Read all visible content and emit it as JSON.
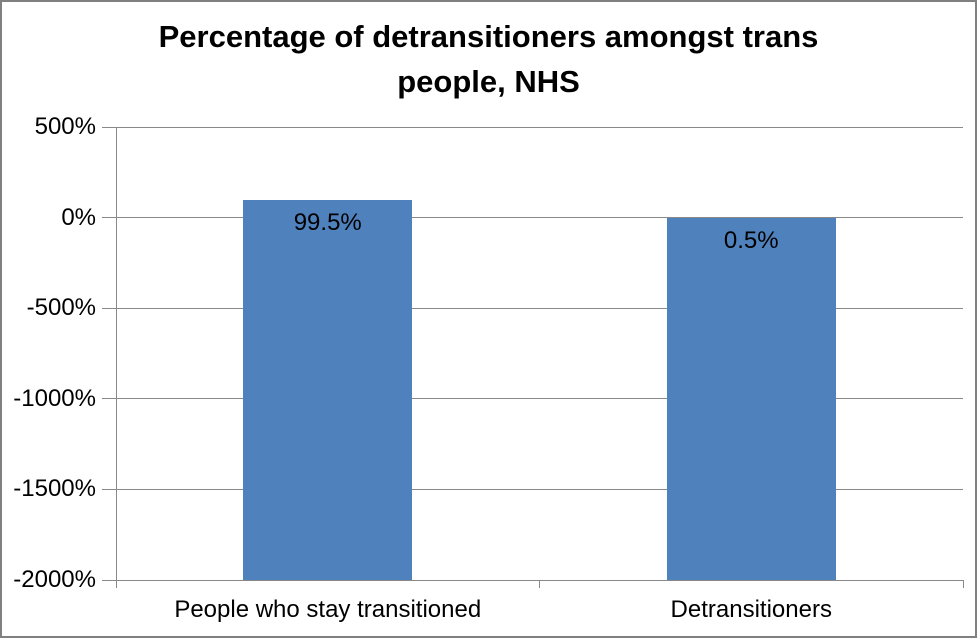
{
  "window": {
    "background": "#FFFFFF",
    "border_color": "#808080"
  },
  "chart_data": {
    "type": "bar",
    "title": "Percentage of detransitioners amongst trans people, NHS",
    "title_lines": [
      "Percentage of detransitioners amongst trans",
      "people, NHS"
    ],
    "categories": [
      "People who stay transitioned",
      "Detransitioners"
    ],
    "values": [
      99.5,
      0.5
    ],
    "value_labels": [
      "99.5%",
      "0.5%"
    ],
    "xlabel": "",
    "ylabel": "",
    "ylim": [
      -2000,
      500
    ],
    "yticks": [
      {
        "value": 500,
        "label": "500%"
      },
      {
        "value": 0,
        "label": "0%"
      },
      {
        "value": -500,
        "label": "-500%"
      },
      {
        "value": -1000,
        "label": "-1000%"
      },
      {
        "value": -1500,
        "label": "-1500%"
      },
      {
        "value": -2000,
        "label": "-2000%"
      }
    ],
    "bar_rendering": "each bar spans from its value at the top down to the plot bottom at -2000%",
    "bar_color": "#4F81BD",
    "axis_color": "#898989",
    "text_color": "#000000",
    "grid": true,
    "legend": "none"
  }
}
